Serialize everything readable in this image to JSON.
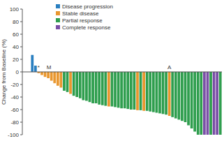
{
  "chart_data": {
    "type": "bar",
    "y_label": "Change from Baseline (%)",
    "ylim": [
      -100,
      100
    ],
    "yticks": [
      -100,
      -80,
      -60,
      -40,
      -20,
      0,
      20,
      40,
      60,
      80,
      100
    ],
    "annotations": [
      "*",
      "M",
      "A"
    ],
    "series": [
      {
        "name": "Disease progression",
        "color": "#2a7fc0",
        "values": [
          27,
          10,
          null,
          null,
          null,
          null,
          null,
          null,
          null,
          null,
          null,
          null,
          null,
          null,
          null,
          null,
          null,
          null,
          null,
          null,
          null,
          null,
          null,
          null,
          null,
          null,
          null,
          null,
          null,
          null,
          null,
          null,
          null,
          null,
          null,
          null,
          null,
          null,
          null,
          null,
          null,
          null,
          null,
          null,
          null,
          null,
          null,
          null,
          null,
          null,
          null,
          null,
          null,
          null,
          null,
          null,
          null,
          null,
          null,
          null
        ]
      },
      {
        "name": "Stable disease",
        "color": "#e9972f",
        "values": [
          null,
          null,
          -2,
          -5,
          -8,
          -10,
          -14,
          -18,
          -22,
          -25,
          null,
          null,
          -35,
          null,
          null,
          null,
          null,
          null,
          null,
          null,
          null,
          null,
          null,
          null,
          -55,
          null,
          null,
          null,
          null,
          null,
          null,
          null,
          null,
          -61,
          null,
          -62,
          null,
          null,
          null,
          null,
          null,
          null,
          null,
          -70,
          null,
          null,
          null,
          null,
          null,
          null,
          null,
          null,
          null,
          null,
          null,
          null,
          null,
          null,
          null,
          null
        ]
      },
      {
        "name": "Partial response",
        "color": "#2f9e4e",
        "values": [
          null,
          null,
          null,
          null,
          null,
          null,
          null,
          null,
          null,
          null,
          -30,
          -32,
          null,
          -38,
          -40,
          -42,
          -45,
          -46,
          -48,
          -50,
          -50,
          -52,
          -53,
          -54,
          null,
          -55,
          -56,
          -57,
          -58,
          -58,
          -59,
          -60,
          -60,
          null,
          -61,
          null,
          -62,
          -63,
          -64,
          -65,
          -66,
          -67,
          -68,
          null,
          -72,
          -74,
          -76,
          -78,
          -80,
          -85,
          -90,
          -95,
          -100,
          -100,
          null,
          null,
          -100,
          null,
          null,
          -100
        ]
      },
      {
        "name": "Complete response",
        "color": "#7a4fa6",
        "values": [
          null,
          null,
          null,
          null,
          null,
          null,
          null,
          null,
          null,
          null,
          null,
          null,
          null,
          null,
          null,
          null,
          null,
          null,
          null,
          null,
          null,
          null,
          null,
          null,
          null,
          null,
          null,
          null,
          null,
          null,
          null,
          null,
          null,
          null,
          null,
          null,
          null,
          null,
          null,
          null,
          null,
          null,
          null,
          null,
          null,
          null,
          null,
          null,
          null,
          null,
          null,
          null,
          null,
          null,
          -100,
          -100,
          null,
          -100,
          -100,
          null
        ]
      }
    ]
  }
}
